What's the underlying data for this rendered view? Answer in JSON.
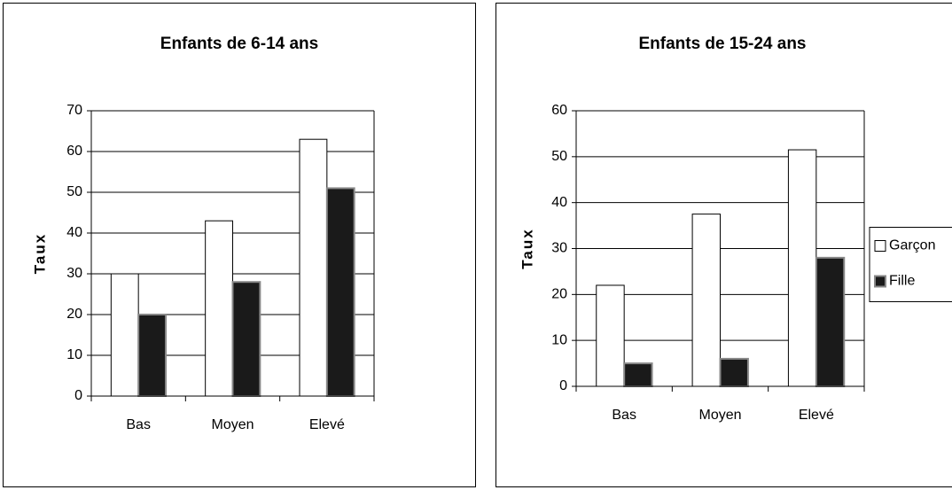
{
  "chart_data": [
    {
      "type": "bar",
      "title": "Enfants de 6-14 ans",
      "y_label": "Taux",
      "categories": [
        "Bas",
        "Moyen",
        "Elevé"
      ],
      "series": [
        {
          "name": "Garçon",
          "color": "#ffffff",
          "values": [
            30,
            43,
            63
          ]
        },
        {
          "name": "Fille",
          "color": "#1a1a1a",
          "values": [
            20,
            28,
            51
          ]
        }
      ],
      "ylim": [
        0,
        70
      ],
      "yticks": [
        0,
        10,
        20,
        30,
        40,
        50,
        60,
        70
      ],
      "grid": true
    },
    {
      "type": "bar",
      "title": "Enfants de 15-24 ans",
      "y_label": "Taux",
      "categories": [
        "Bas",
        "Moyen",
        "Elevé"
      ],
      "series": [
        {
          "name": "Garçon",
          "color": "#ffffff",
          "values": [
            22,
            37.5,
            51.5
          ]
        },
        {
          "name": "Fille",
          "color": "#1a1a1a",
          "values": [
            5,
            6,
            28
          ]
        }
      ],
      "ylim": [
        0,
        60
      ],
      "yticks": [
        0,
        10,
        20,
        30,
        40,
        50,
        60
      ],
      "grid": true,
      "legend": "right"
    }
  ]
}
